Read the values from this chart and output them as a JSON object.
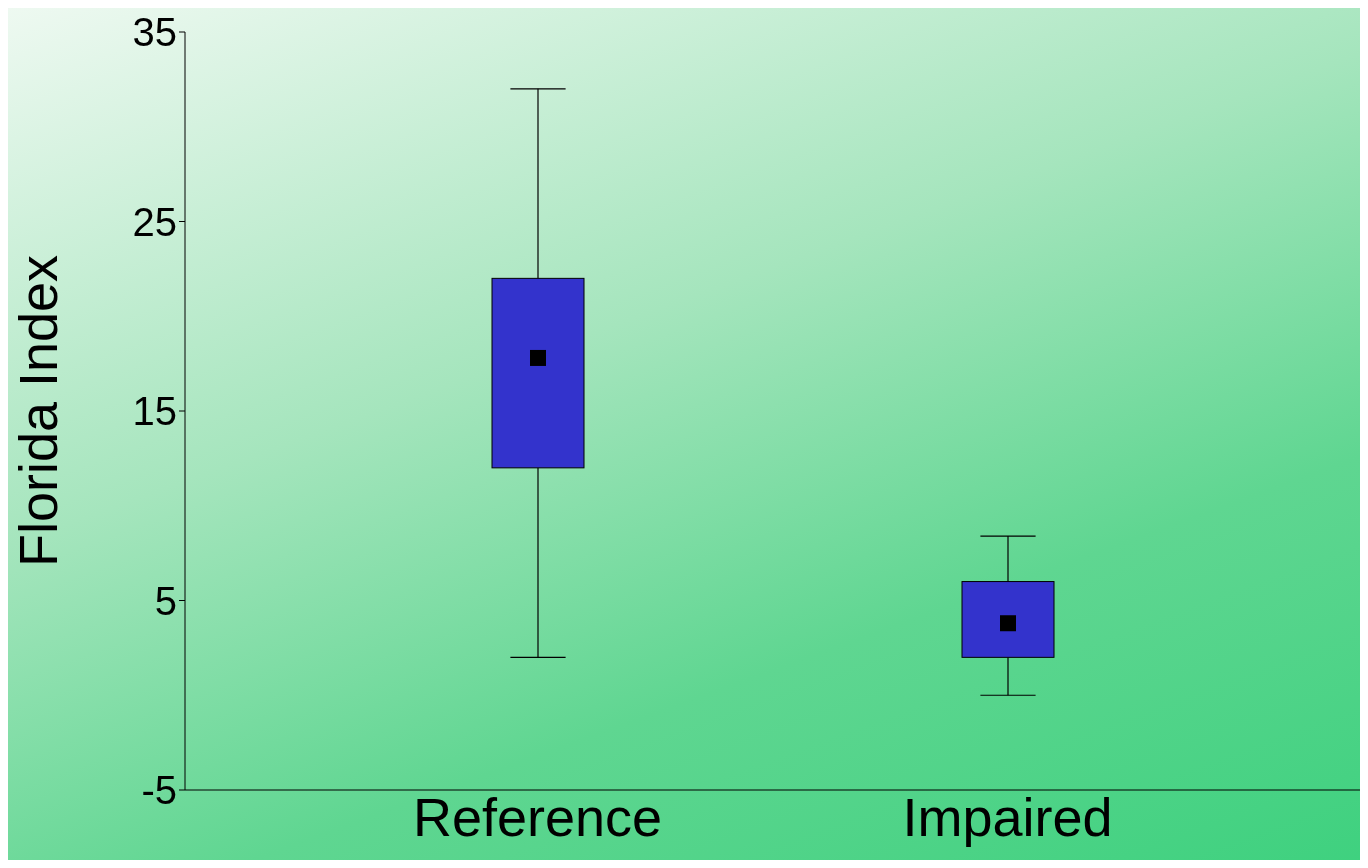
{
  "chart_data": {
    "type": "box",
    "ylabel": "Florida Index",
    "categories": [
      null,
      "Reference",
      null,
      "Impaired",
      null
    ],
    "boxes": [
      null,
      {
        "low": 2,
        "q1": 12,
        "median": 17.8,
        "q3": 22,
        "high": 32
      },
      null,
      {
        "low": 0,
        "q1": 2,
        "median": 3.8,
        "q3": 6,
        "high": 8.4
      },
      null
    ],
    "color": "#3333cc",
    "ylim": [
      -5,
      35
    ],
    "yticks": [
      -5,
      5,
      15,
      25,
      35
    ],
    "grid": false,
    "legend": false
  }
}
